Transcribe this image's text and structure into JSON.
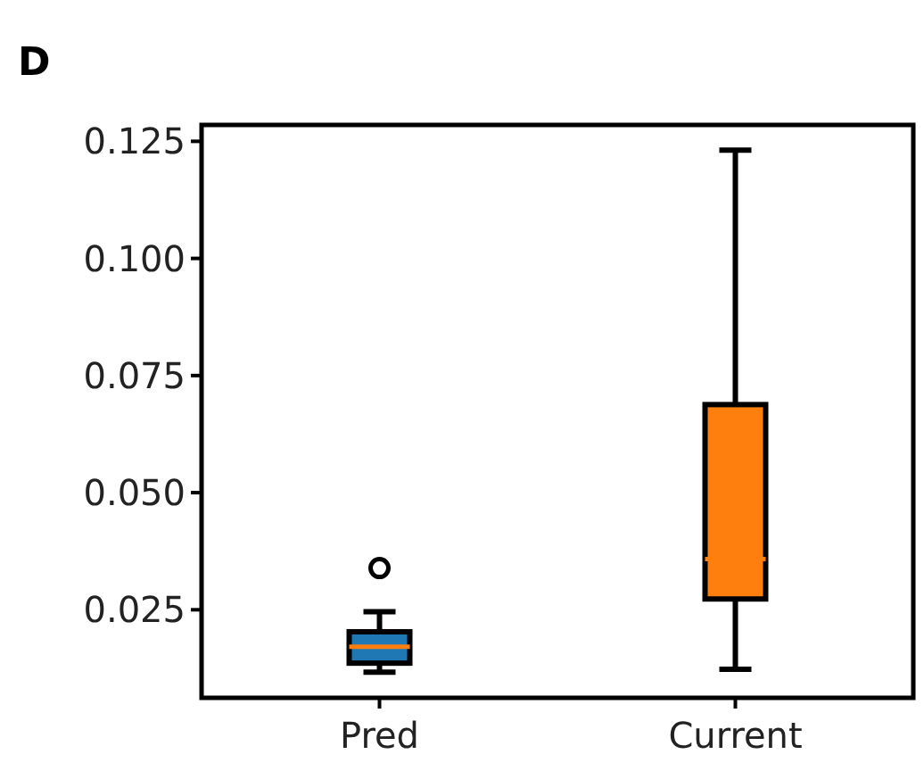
{
  "chart_data": {
    "type": "box",
    "title": "D",
    "categories": [
      "Pred",
      "Current"
    ],
    "colors": [
      "#1f77b4",
      "#ff7f0e"
    ],
    "boxes": [
      {
        "low": 0.0117,
        "q1": 0.0136,
        "median": 0.0171,
        "q3": 0.0203,
        "high": 0.0246,
        "outliers": [
          0.0339
        ]
      },
      {
        "low": 0.0123,
        "q1": 0.0273,
        "median": 0.0358,
        "q3": 0.0688,
        "high": 0.1231
      }
    ],
    "ylim": [
      0.0062,
      0.1285
    ],
    "yticks": [
      {
        "value": 0.025,
        "label": "0.025"
      },
      {
        "value": 0.05,
        "label": "0.050"
      },
      {
        "value": 0.075,
        "label": "0.075"
      },
      {
        "value": 0.1,
        "label": "0.100"
      },
      {
        "value": 0.125,
        "label": "0.125"
      }
    ],
    "grid": false
  }
}
